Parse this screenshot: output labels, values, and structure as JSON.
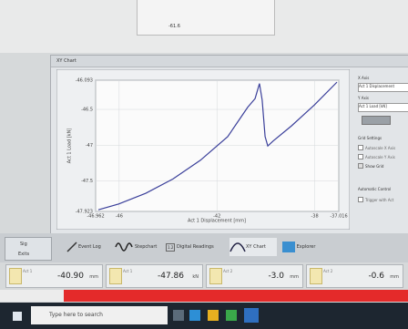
{
  "top_panel": {
    "value": "-61.6"
  },
  "window": {
    "title": "XY Chart"
  },
  "chart_data": {
    "type": "line",
    "x_label": "Act 1 Displacement [mm]",
    "y_label": "Act 1 Load [kN]",
    "x": [
      -46.85,
      -46.03,
      -44.91,
      -43.8,
      -42.68,
      -41.56,
      -41.0,
      -40.74,
      -40.44,
      -40.26,
      -40.15,
      -40.03,
      -39.92,
      -39.7,
      -38.95,
      -38.02,
      -37.09
    ],
    "series": [
      {
        "name": "Act 1 Load [kN]",
        "color": "#3a3f9a",
        "values": [
          -47.9,
          -47.82,
          -47.67,
          -47.47,
          -47.21,
          -46.88,
          -46.6,
          -46.47,
          -46.35,
          -46.14,
          -46.37,
          -46.88,
          -47.01,
          -46.94,
          -46.73,
          -46.44,
          -46.12
        ]
      }
    ],
    "xlim": [
      -46.962,
      -37.016
    ],
    "xticks": [
      -46.962,
      -46,
      -42,
      -38,
      -37.016
    ],
    "ylim": [
      -47.923,
      -46.093
    ],
    "yticks": [
      -47.923,
      -47.5,
      -47,
      -46.5,
      -46.093
    ],
    "grid": true
  },
  "side_panel": {
    "x_axis": "X Axis",
    "x_axis_value": "Act 1 Displacement",
    "y_axis": "Y Axis",
    "y_axis_value": "Act 1 Load [kN]",
    "grid_settings": "Grid Settings",
    "options": [
      "Autoscale X Axis",
      "Autoscale Y Axis",
      "Show Grid"
    ],
    "automatic_control": "Automatic Control",
    "trigger": "Trigger with Act"
  },
  "toolbar": {
    "left": [
      "Sig",
      "Exits"
    ],
    "tabs": [
      "Event Log",
      "Stepchart",
      "Digital Readings",
      "XY Chart",
      "Explorer"
    ]
  },
  "readouts": [
    {
      "name": "Act 1",
      "value": "-40.90",
      "unit": "mm"
    },
    {
      "name": "Act 1",
      "value": "-47.86",
      "unit": "kN"
    },
    {
      "name": "Act 2",
      "value": "-3.0",
      "unit": "mm"
    },
    {
      "name": "Act 2",
      "value": "-0.6",
      "unit": "mm"
    }
  ],
  "taskbar": {
    "search": "Type here to search"
  }
}
